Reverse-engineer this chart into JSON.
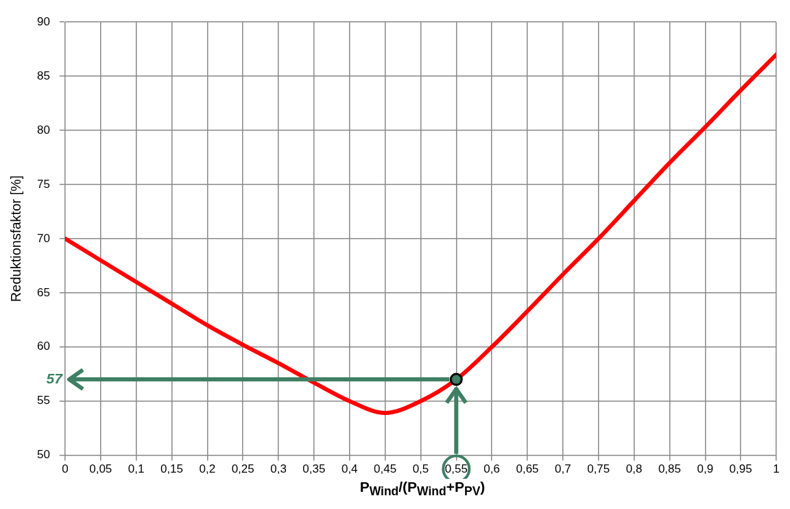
{
  "chart_data": {
    "type": "line",
    "xlabel": "P$_{Wind}$/(P$_{Wind}$+P$_{PV}$)",
    "ylabel": "Reduktionsfaktor [%]",
    "xlim": [
      0,
      1
    ],
    "ylim": [
      50,
      90
    ],
    "xticks": [
      0,
      {
        "value": 0.05,
        "label": "0,05"
      },
      {
        "value": 0.1,
        "label": "0,1"
      },
      {
        "value": 0.15,
        "label": "0,15"
      },
      {
        "value": 0.2,
        "label": "0,2"
      },
      {
        "value": 0.25,
        "label": "0,25"
      },
      {
        "value": 0.3,
        "label": "0,3"
      },
      {
        "value": 0.35,
        "label": "0,35"
      },
      {
        "value": 0.4,
        "label": "0,4"
      },
      {
        "value": 0.45,
        "label": "0,45"
      },
      {
        "value": 0.5,
        "label": "0,5"
      },
      {
        "value": 0.55,
        "label": "0,55"
      },
      {
        "value": 0.6,
        "label": "0,6"
      },
      {
        "value": 0.65,
        "label": "0,65"
      },
      {
        "value": 0.7,
        "label": "0,7"
      },
      {
        "value": 0.75,
        "label": "0,75"
      },
      {
        "value": 0.8,
        "label": "0,8"
      },
      {
        "value": 0.85,
        "label": "0,85"
      },
      {
        "value": 0.9,
        "label": "0,9"
      },
      {
        "value": 0.95,
        "label": "0,95"
      },
      1
    ],
    "yticks": [
      50,
      55,
      60,
      65,
      70,
      75,
      80,
      85,
      90
    ],
    "grid": true,
    "legend": false,
    "series": [
      {
        "color": "#ff0000",
        "marker": "none",
        "x": [
          0,
          0.05,
          0.1,
          0.15,
          0.2,
          0.25,
          0.3,
          0.35,
          0.4,
          0.45,
          0.5,
          0.55,
          0.6,
          0.65,
          0.7,
          0.75,
          0.8,
          0.85,
          0.9,
          0.95,
          1
        ],
        "values": [
          70,
          68,
          66,
          64,
          62,
          60.2,
          58.5,
          56.7,
          55,
          53.9,
          55,
          57,
          60,
          63.3,
          66.7,
          70,
          73.5,
          77,
          80.3,
          83.7,
          87
        ]
      },
      {
        "type": "scatter",
        "color": "#3f7f63",
        "marker": "circle",
        "x": [
          0.55
        ],
        "values": [
          57
        ]
      }
    ],
    "annotations": [
      "57"
    ]
  }
}
